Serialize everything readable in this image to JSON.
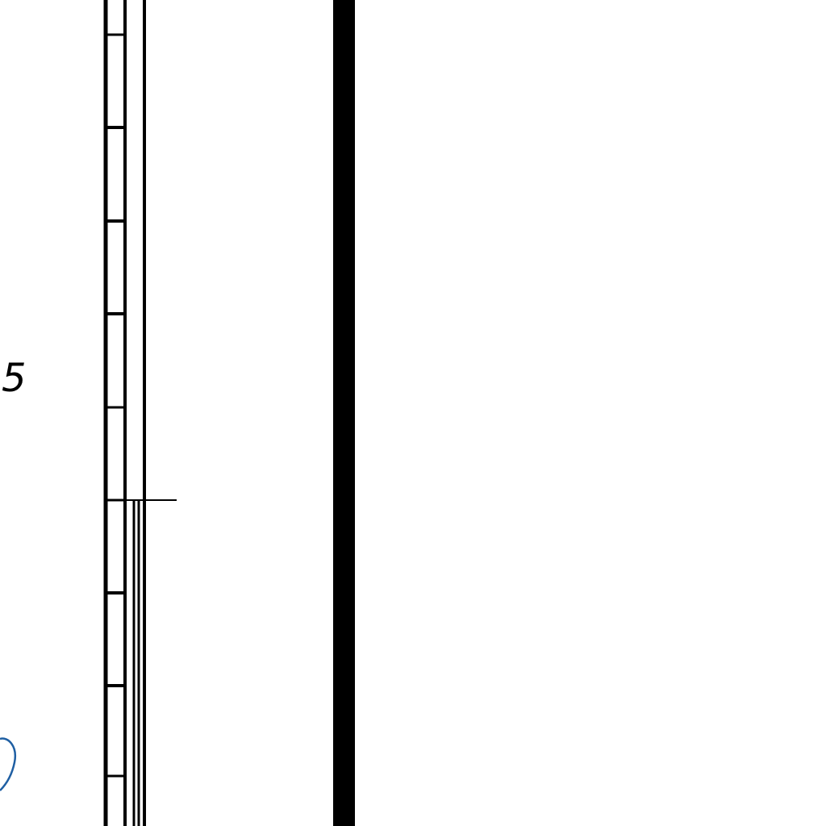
{
  "scale_label": "5",
  "colors": {
    "ink": "#000000",
    "blue_mark": "#1f5fa3",
    "background": "#ffffff"
  }
}
